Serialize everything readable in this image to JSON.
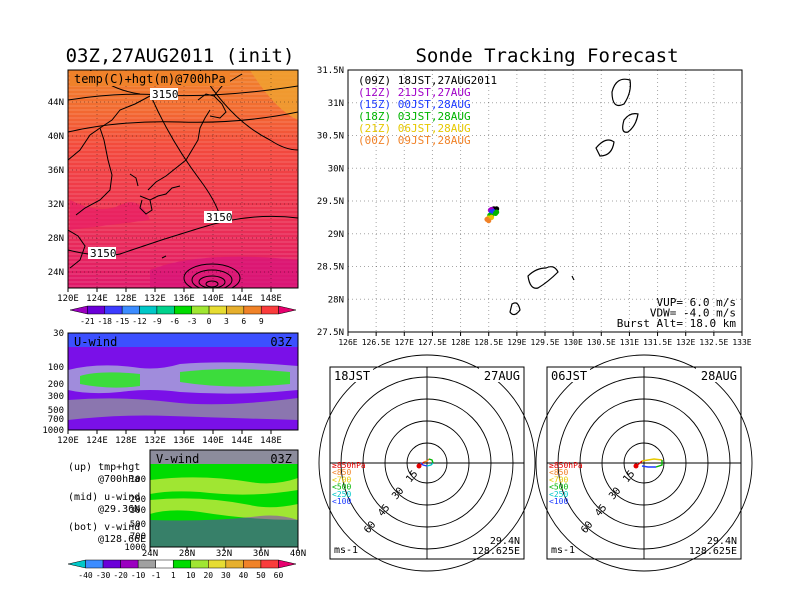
{
  "left_title": "03Z,27AUG2011 (init)",
  "right_title": "Sonde Tracking Forecast",
  "map_panel": {
    "label": "temp(C)+hgt(m)@700hPa",
    "contour_labels": [
      "3150",
      "3150",
      "3150"
    ],
    "x_ticks": [
      "120E",
      "124E",
      "128E",
      "132E",
      "136E",
      "140E",
      "144E",
      "148E"
    ],
    "y_ticks": [
      "24N",
      "28N",
      "32N",
      "36N",
      "40N",
      "44N"
    ],
    "colorbar_labels": [
      "-21",
      "-18",
      "-15",
      "-12",
      "-9",
      "-6",
      "-3",
      "0",
      "3",
      "6",
      "9"
    ],
    "colorbar_colors": [
      "#9b00c0",
      "#6a00d8",
      "#3c3cff",
      "#3c8cff",
      "#00c8c8",
      "#00d28c",
      "#00dc00",
      "#a0e632",
      "#e6dc32",
      "#e6af2d",
      "#f08228",
      "#fa3c3c",
      "#e6006e"
    ]
  },
  "u_panel": {
    "label": "U-wind",
    "time": "03Z",
    "y_ticks": [
      "30",
      "100",
      "200",
      "300",
      "500",
      "700",
      "1000"
    ],
    "x_ticks": [
      "120E",
      "124E",
      "128E",
      "132E",
      "136E",
      "140E",
      "144E",
      "148E"
    ]
  },
  "v_panel": {
    "label": "V-wind",
    "time": "03Z",
    "y_ticks": [
      "100",
      "200",
      "300",
      "500",
      "700",
      "1000"
    ],
    "x_ticks": [
      "24N",
      "28N",
      "32N",
      "36N",
      "40N"
    ],
    "colorbar_labels": [
      "-40",
      "-30",
      "-20",
      "-10",
      "-1",
      "1",
      "10",
      "20",
      "30",
      "40",
      "50",
      "60"
    ],
    "colorbar_colors": [
      "#00c8c8",
      "#3c8cff",
      "#6a00d8",
      "#9b00c0",
      "#a0a0a0",
      "#ffffff",
      "#00dc00",
      "#a0e632",
      "#e6dc32",
      "#e6af2d",
      "#f08228",
      "#fa3c3c",
      "#e6006e"
    ]
  },
  "panel_notes": [
    {
      "a": "(up) tmp+hgt",
      "b": "@700hPa"
    },
    {
      "a": "(mid) u-wind",
      "b": "@29.36N"
    },
    {
      "a": "(bot) v-wind",
      "b": "@128.66E"
    }
  ],
  "track_panel": {
    "x_ticks": [
      "126E",
      "126.5E",
      "127E",
      "127.5E",
      "128E",
      "128.5E",
      "129E",
      "129.5E",
      "130E",
      "130.5E",
      "131E",
      "131.5E",
      "132E",
      "132.5E",
      "133E"
    ],
    "y_ticks": [
      "31.5N",
      "31N",
      "30.5N",
      "30N",
      "29.5N",
      "29N",
      "28.5N",
      "28N",
      "27.5N"
    ],
    "legend": [
      {
        "text": "(09Z) 18JST,27AUG2011",
        "color": "#000000"
      },
      {
        "text": "(12Z) 21JST,27AUG",
        "color": "#a000c8"
      },
      {
        "text": "(15Z) 00JST,28AUG",
        "color": "#1e3cff"
      },
      {
        "text": "(18Z) 03JST,28AUG",
        "color": "#00b400"
      },
      {
        "text": "(21Z) 06JST,28AUG",
        "color": "#e6c800"
      },
      {
        "text": "(00Z) 09JST,28AUG",
        "color": "#f08228"
      }
    ],
    "params": [
      "VUP= 6.0 m/s",
      "VDW= -4.0 m/s",
      "Burst Alt= 18.0 km"
    ]
  },
  "hodographs": [
    {
      "time": "18JST",
      "date": "27AUG",
      "lat": "29.4N",
      "lon": "128.625E",
      "unit": "ms-1"
    },
    {
      "time": "06JST",
      "date": "28AUG",
      "lat": "29.4N",
      "lon": "128.625E",
      "unit": "ms-1"
    }
  ],
  "hodo_ring_labels": [
    "15",
    "30",
    "45",
    "60"
  ],
  "hodo_level_legend": [
    {
      "text": "≥850hPa",
      "color": "#e60000"
    },
    {
      "text": "<850",
      "color": "#f08228"
    },
    {
      "text": "<700",
      "color": "#e6c800"
    },
    {
      "text": "<500",
      "color": "#00b400"
    },
    {
      "text": "<250",
      "color": "#00c8c8"
    },
    {
      "text": "<100",
      "color": "#1e3cff"
    }
  ],
  "chart_data": [
    {
      "type": "heatmap",
      "title": "temp(C)+hgt(m)@700hPa",
      "x_range": [
        "120E",
        "149E"
      ],
      "y_range": [
        "22N",
        "47N"
      ],
      "contour_values": [
        3150
      ],
      "colorbar": [
        -21,
        -18,
        -15,
        -12,
        -9,
        -6,
        -3,
        0,
        3,
        6,
        9
      ]
    },
    {
      "type": "heatmap",
      "title": "U-wind",
      "x_range": [
        "120E",
        "149E"
      ],
      "y_levels_hPa": [
        30,
        100,
        200,
        300,
        500,
        700,
        1000
      ]
    },
    {
      "type": "heatmap",
      "title": "V-wind",
      "x_range": [
        "24N",
        "40N"
      ],
      "y_levels_hPa": [
        100,
        200,
        300,
        500,
        700,
        1000
      ],
      "colorbar": [
        -40,
        -30,
        -20,
        -10,
        -1,
        1,
        10,
        20,
        30,
        40,
        50,
        60
      ]
    },
    {
      "type": "scatter",
      "title": "Sonde Tracking Forecast",
      "xlim": [
        126,
        133
      ],
      "ylim": [
        27.5,
        31.5
      ],
      "series": [
        {
          "name": "(09Z) 18JST,27AUG2011",
          "points": [
            [
              128.56,
              29.37
            ],
            [
              128.59,
              29.38
            ],
            [
              128.62,
              29.37
            ],
            [
              128.64,
              29.38
            ]
          ]
        },
        {
          "name": "(12Z) 21JST,27AUG",
          "points": [
            [
              128.53,
              29.36
            ],
            [
              128.55,
              29.37
            ]
          ]
        },
        {
          "name": "(15Z) 00JST,28AUG",
          "points": [
            [
              128.55,
              29.33
            ],
            [
              128.58,
              29.34
            ]
          ]
        },
        {
          "name": "(18Z) 03JST,28AUG",
          "points": [
            [
              128.52,
              29.28
            ],
            [
              128.55,
              29.27
            ],
            [
              128.62,
              29.31
            ],
            [
              128.64,
              29.33
            ]
          ]
        },
        {
          "name": "(21Z) 06JST,28AUG",
          "points": [
            [
              128.5,
              29.24
            ],
            [
              128.55,
              29.25
            ]
          ]
        },
        {
          "name": "(00Z) 09JST,28AUG",
          "points": [
            [
              128.47,
              29.22
            ],
            [
              128.5,
              29.2
            ]
          ]
        }
      ]
    }
  ]
}
